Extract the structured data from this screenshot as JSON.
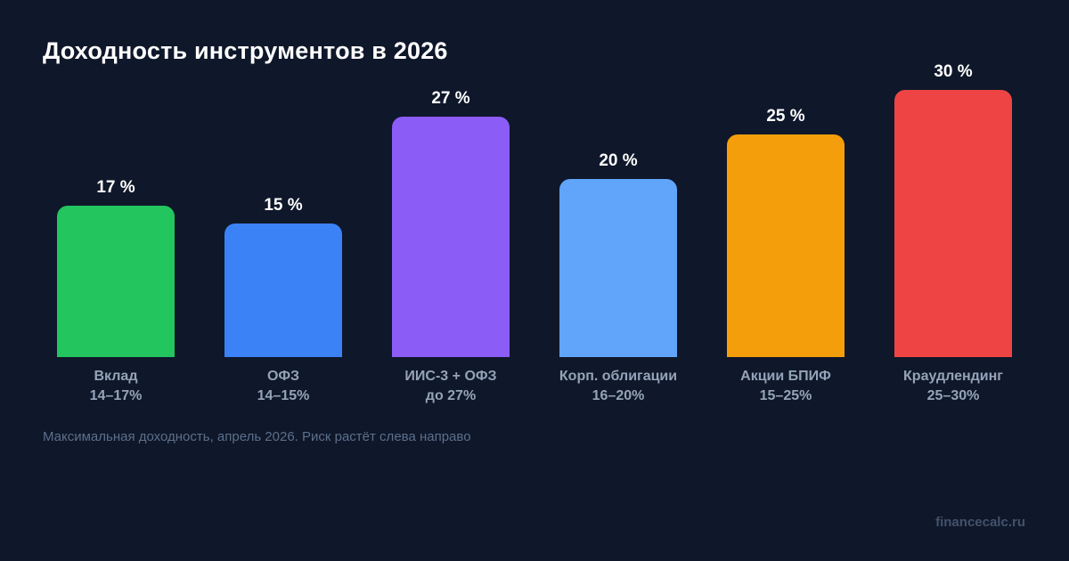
{
  "page": {
    "background_color": "#0f172a"
  },
  "header": {
    "title": "Доходность инструментов в 2026"
  },
  "chart_data": {
    "type": "bar",
    "title": "Доходность инструментов в 2026",
    "orientation": "vertical",
    "grid": false,
    "legend": false,
    "ylim": [
      0,
      30
    ],
    "categories": [
      "Вклад",
      "ОФЗ",
      "ИИС-3 + ОФЗ",
      "Корп. облигации",
      "Акции БПИФ",
      "Краудлендинг"
    ],
    "range_labels": [
      "14–17%",
      "14–15%",
      "до 27%",
      "16–20%",
      "15–25%",
      "25–30%"
    ],
    "values": [
      17,
      15,
      27,
      20,
      25,
      30
    ],
    "value_labels": [
      "17 %",
      "15 %",
      "27 %",
      "20 %",
      "25 %",
      "30 %"
    ],
    "colors": [
      "#22c55e",
      "#3b82f6",
      "#8b5cf6",
      "#60a5fa",
      "#f59e0b",
      "#ef4444"
    ]
  },
  "footnote": {
    "text": "Максимальная доходность, апрель 2026. Риск растёт слева направо"
  },
  "watermark": {
    "text": "financecalc.ru"
  }
}
